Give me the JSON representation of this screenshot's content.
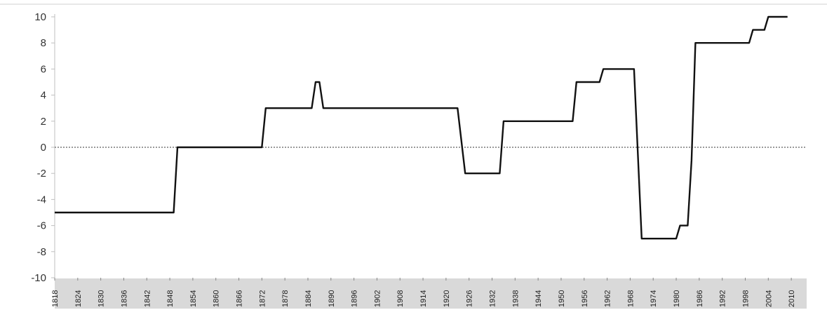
{
  "chart_data": {
    "type": "line",
    "title": "",
    "xlabel": "",
    "ylabel": "",
    "xlim": [
      1818,
      2014
    ],
    "ylim": [
      -10,
      10
    ],
    "y_ticks": [
      "10",
      "8",
      "6",
      "4",
      "2",
      "0",
      "-2",
      "-4",
      "-6",
      "-8",
      "-10"
    ],
    "x_tick_labels": [
      "1818",
      "1824",
      "1830",
      "1836",
      "1842",
      "1848",
      "1854",
      "1860",
      "1866",
      "1872",
      "1878",
      "1884",
      "1890",
      "1896",
      "1902",
      "1908",
      "1914",
      "1920",
      "1926",
      "1932",
      "1938",
      "1944",
      "1950",
      "1956",
      "1962",
      "1968",
      "1974",
      "1980",
      "1986",
      "1992",
      "1998",
      "2004",
      "2010"
    ],
    "grid": false,
    "legend": "none",
    "zero_line": true,
    "series": [
      {
        "x": [
          1818,
          1849,
          1850,
          1872,
          1873,
          1885,
          1886,
          1887,
          1888,
          1923,
          1925,
          1934,
          1935,
          1953,
          1954,
          1960,
          1961,
          1969,
          1971,
          1980,
          1981,
          1983,
          1984,
          1985,
          1986,
          1999,
          2000,
          2003,
          2004,
          2009
        ],
        "y": [
          -5,
          -5,
          0,
          0,
          3,
          3,
          5,
          5,
          3,
          3,
          -2,
          -2,
          2,
          2,
          5,
          5,
          6,
          6,
          -7,
          -7,
          -6,
          -6,
          -1,
          8,
          8,
          8,
          9,
          9,
          10,
          10
        ]
      }
    ],
    "colors": {
      "line": "#111111",
      "zero_line": "#9a9a9a",
      "axis": "#bfbfbf",
      "label_band": "#d9d9d9"
    }
  }
}
